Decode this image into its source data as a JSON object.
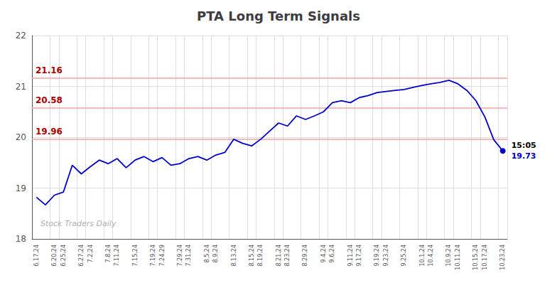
{
  "chart_data": {
    "type": "line",
    "title": "PTA Long Term Signals",
    "categories": [
      "6.17.24",
      null,
      "6.20.24",
      "6.25.24",
      null,
      "6.27.24",
      "7.2.24",
      null,
      "7.8.24",
      "7.11.24",
      null,
      "7.15.24",
      null,
      "7.19.24",
      "7.24.29",
      null,
      "7.29.24",
      "7.31.24",
      null,
      "8.5.24",
      "8.9.24",
      null,
      "8.13.24",
      null,
      "8.15.24",
      "8.19.24",
      null,
      "8.21.24",
      "8.23.24",
      null,
      "8.29.24",
      null,
      "9.4.24",
      "9.6.24",
      null,
      "9.11.24",
      "9.17.24",
      null,
      "9.19.24",
      "9.23.24",
      null,
      "9.25.24",
      null,
      "10.1.24",
      "10.4.24",
      null,
      "10.9.24",
      "10.11.24",
      null,
      "10.15.24",
      "10.17.24",
      null,
      "10.23.24"
    ],
    "values": [
      18.82,
      18.67,
      18.86,
      18.92,
      19.45,
      19.28,
      19.42,
      19.55,
      19.48,
      19.58,
      19.4,
      19.55,
      19.62,
      19.52,
      19.6,
      19.45,
      19.48,
      19.58,
      19.62,
      19.55,
      19.65,
      19.7,
      19.96,
      19.88,
      19.83,
      19.96,
      20.12,
      20.28,
      20.22,
      20.42,
      20.35,
      20.42,
      20.5,
      20.68,
      20.72,
      20.68,
      20.78,
      20.82,
      20.88,
      20.9,
      20.92,
      20.94,
      20.98,
      21.02,
      21.05,
      21.08,
      21.12,
      21.05,
      20.92,
      20.72,
      20.4,
      19.95,
      19.73
    ],
    "color": "#0000cc",
    "ylim": [
      18,
      22
    ],
    "yticks": [
      18,
      19,
      20,
      21,
      22
    ],
    "grid": true,
    "reference_lines": [
      {
        "value": 21.16,
        "label": "21.16",
        "color": "#f5a0a0",
        "label_color": "#aa0000"
      },
      {
        "value": 20.58,
        "label": "20.58",
        "color": "#f5a0a0",
        "label_color": "#aa0000"
      },
      {
        "value": 19.96,
        "label": "19.96",
        "color": "#f5a0a0",
        "label_color": "#aa0000"
      }
    ],
    "endpoint_label": 19.73,
    "annotations": [
      {
        "text": "Stock Traders Daily",
        "color": "#b0b0b0"
      },
      {
        "text": "15:05"
      }
    ]
  }
}
